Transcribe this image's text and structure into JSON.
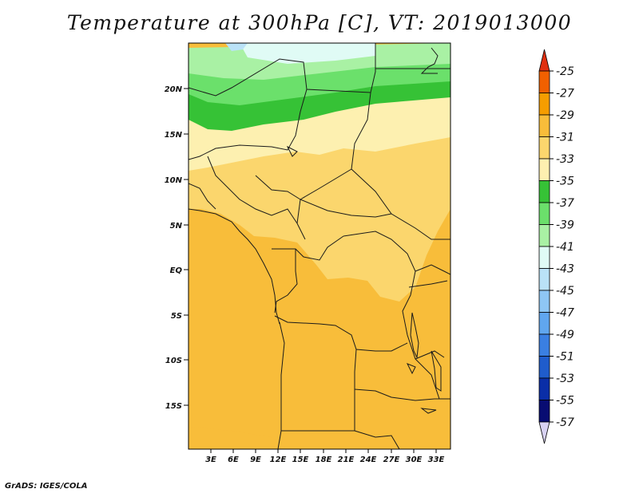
{
  "title": "Temperature at 300hPa [C], VT: 2019013000",
  "credit": "GrADS: IGES/COLA",
  "map": {
    "lat_labels": [
      "20N",
      "15N",
      "10N",
      "5N",
      "EQ",
      "5S",
      "10S",
      "15S"
    ],
    "lon_labels": [
      "3E",
      "6E",
      "9E",
      "12E",
      "15E",
      "18E",
      "21E",
      "24E",
      "27E",
      "30E",
      "33E"
    ]
  },
  "colorbar": {
    "labels": [
      "-25",
      "-27",
      "-29",
      "-31",
      "-33",
      "-35",
      "-37",
      "-39",
      "-41",
      "-43",
      "-45",
      "-47",
      "-49",
      "-51",
      "-53",
      "-55",
      "-57"
    ],
    "colors": [
      "#e03010",
      "#f06000",
      "#f59d00",
      "#f8bd3a",
      "#fbd66d",
      "#fdf0b0",
      "#36c236",
      "#6be06b",
      "#a9f1a4",
      "#e0fbf5",
      "#bae2f7",
      "#8ec6f4",
      "#60a6ef",
      "#3a7fe2",
      "#1f5ccc",
      "#0a2ea7",
      "#080c72",
      "#d8d2f3"
    ]
  }
}
